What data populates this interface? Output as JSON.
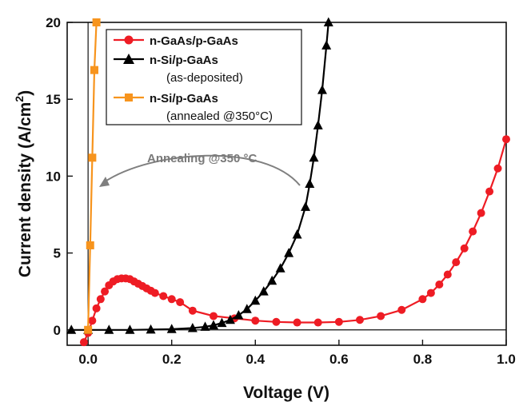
{
  "chart_data": {
    "type": "line",
    "xlabel": "Voltage (V)",
    "ylabel": "Current density (A/cm",
    "ylabel_sup": "2",
    "ylabel_end": ")",
    "xlim": [
      -0.05,
      1.0
    ],
    "ylim": [
      -1.0,
      20
    ],
    "x_ticks": [
      0.0,
      0.2,
      0.4,
      0.6,
      0.8,
      1.0
    ],
    "x_tick_labels": [
      "0.0",
      "0.2",
      "0.4",
      "0.6",
      "0.8",
      "1.0"
    ],
    "y_ticks": [
      0,
      5,
      10,
      15,
      20
    ],
    "y_tick_labels": [
      "0",
      "5",
      "10",
      "15",
      "20"
    ],
    "grid": false,
    "legend_position": "top-center",
    "series": [
      {
        "name": "n-GaAs/p-GaAs",
        "color": "#ee1c24",
        "marker": "circle",
        "x": [
          -0.01,
          0.0,
          0.01,
          0.02,
          0.03,
          0.04,
          0.05,
          0.06,
          0.07,
          0.08,
          0.09,
          0.1,
          0.11,
          0.12,
          0.13,
          0.14,
          0.15,
          0.16,
          0.18,
          0.2,
          0.22,
          0.25,
          0.3,
          0.35,
          0.4,
          0.45,
          0.5,
          0.55,
          0.6,
          0.65,
          0.7,
          0.75,
          0.8,
          0.82,
          0.84,
          0.86,
          0.88,
          0.9,
          0.92,
          0.94,
          0.96,
          0.98,
          1.0
        ],
        "y": [
          -0.8,
          -0.2,
          0.6,
          1.4,
          2.0,
          2.5,
          2.9,
          3.15,
          3.3,
          3.35,
          3.35,
          3.3,
          3.15,
          3.0,
          2.85,
          2.7,
          2.55,
          2.4,
          2.2,
          2.0,
          1.8,
          1.25,
          0.9,
          0.75,
          0.6,
          0.52,
          0.48,
          0.48,
          0.52,
          0.65,
          0.9,
          1.3,
          2.0,
          2.4,
          2.95,
          3.6,
          4.4,
          5.3,
          6.4,
          7.6,
          9.0,
          10.5,
          12.4
        ]
      },
      {
        "name": "n-Si/p-GaAs",
        "note": "(as-deposited)",
        "color": "#000000",
        "marker": "triangle",
        "x": [
          -0.04,
          0.0,
          0.05,
          0.1,
          0.15,
          0.2,
          0.25,
          0.28,
          0.3,
          0.32,
          0.34,
          0.36,
          0.38,
          0.4,
          0.42,
          0.44,
          0.46,
          0.48,
          0.5,
          0.52,
          0.53,
          0.54,
          0.55,
          0.56,
          0.57,
          0.575
        ],
        "y": [
          0.0,
          0.0,
          0.0,
          0.0,
          0.02,
          0.05,
          0.12,
          0.2,
          0.3,
          0.45,
          0.65,
          0.95,
          1.35,
          1.9,
          2.5,
          3.2,
          4.0,
          5.0,
          6.2,
          8.0,
          9.5,
          11.2,
          13.3,
          15.6,
          18.5,
          20.0
        ]
      },
      {
        "name": "n-Si/p-GaAs",
        "note": "(annealed @350°C)",
        "color": "#f7941d",
        "marker": "square",
        "x": [
          0.0,
          0.005,
          0.01,
          0.015,
          0.02
        ],
        "y": [
          0.0,
          5.5,
          11.2,
          16.9,
          20.0
        ]
      }
    ],
    "annotation": "Annealing @350 °C"
  }
}
